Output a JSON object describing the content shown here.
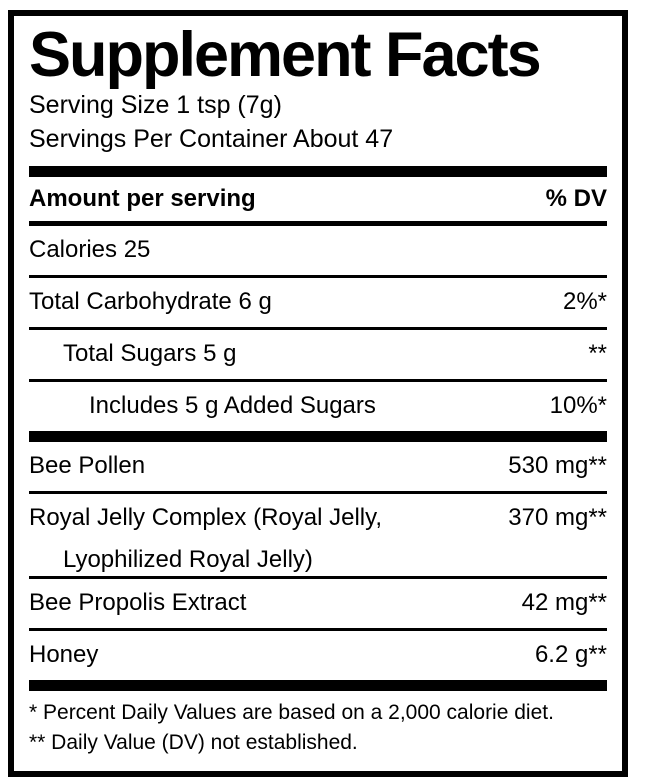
{
  "panel": {
    "title": "Supplement Facts",
    "serving_size": "Serving Size 1 tsp (7g)",
    "servings_per_container": "Servings Per Container About 47",
    "columns": {
      "amount": "Amount per serving",
      "dv": "% DV"
    },
    "calories": "Calories 25",
    "nutrient_rows": [
      {
        "name": "Total Carbohydrate 6 g",
        "value": "2%*",
        "indent": 0
      },
      {
        "name": "Total Sugars 5 g",
        "value": "**",
        "indent": 1
      },
      {
        "name": "Includes 5 g Added Sugars",
        "value": "10%*",
        "indent": 2
      }
    ],
    "ingredient_rows": [
      {
        "name": "Bee Pollen",
        "value": "530 mg**"
      },
      {
        "name": "Royal Jelly Complex (Royal Jelly,",
        "name_line2": "Lyophilized Royal Jelly)",
        "value": "370 mg**"
      },
      {
        "name": "Bee Propolis Extract",
        "value": "42 mg**"
      },
      {
        "name": "Honey",
        "value": "6.2 g**"
      }
    ],
    "footnotes": [
      "* Percent Daily Values are based on a 2,000 calorie diet.",
      "** Daily Value (DV) not established."
    ],
    "colors": {
      "foreground": "#000000",
      "background": "#ffffff"
    }
  }
}
